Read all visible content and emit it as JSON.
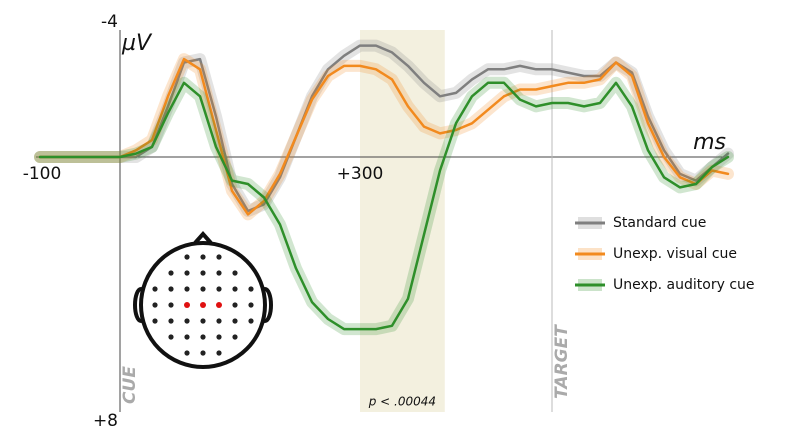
{
  "chart_data": {
    "type": "line",
    "x_label": "ms",
    "y_label": "µV",
    "x": [
      -100,
      -80,
      -60,
      -40,
      -20,
      0,
      20,
      40,
      60,
      80,
      100,
      120,
      140,
      160,
      180,
      200,
      220,
      240,
      260,
      280,
      300,
      320,
      340,
      360,
      380,
      400,
      420,
      440,
      460,
      480,
      500,
      520,
      540,
      560,
      580,
      600,
      620,
      640,
      660,
      680,
      700,
      720,
      740,
      760
    ],
    "series": [
      {
        "name": "Standard cue",
        "color": "#7f7f7f",
        "values": [
          0,
          0,
          0,
          0,
          0,
          0,
          0,
          -0.3,
          -1.5,
          -2.8,
          -2.9,
          -1.2,
          0.8,
          1.6,
          1.4,
          0.6,
          -0.6,
          -1.8,
          -2.6,
          -3.0,
          -3.3,
          -3.3,
          -3.1,
          -2.7,
          -2.2,
          -1.8,
          -1.9,
          -2.3,
          -2.6,
          -2.6,
          -2.7,
          -2.6,
          -2.6,
          -2.5,
          -2.4,
          -2.4,
          -2.8,
          -2.5,
          -1.2,
          -0.2,
          0.5,
          0.7,
          0.3,
          -0.1
        ]
      },
      {
        "name": "Unexp. visual cue",
        "color": "#f28a1e",
        "values": [
          0,
          0,
          0,
          0,
          0,
          0,
          -0.2,
          -0.5,
          -1.8,
          -2.9,
          -2.6,
          -0.8,
          1.0,
          1.7,
          1.3,
          0.5,
          -0.6,
          -1.7,
          -2.4,
          -2.7,
          -2.7,
          -2.6,
          -2.3,
          -1.5,
          -0.9,
          -0.7,
          -0.8,
          -1.0,
          -1.4,
          -1.8,
          -2.0,
          -2.0,
          -2.1,
          -2.2,
          -2.2,
          -2.3,
          -2.8,
          -2.4,
          -1.0,
          0.0,
          0.6,
          0.8,
          0.4,
          0.5
        ]
      },
      {
        "name": "Unexp. auditory cue",
        "color": "#2e8f2a",
        "values": [
          0,
          0,
          0,
          0,
          0,
          0,
          -0.1,
          -0.3,
          -1.3,
          -2.2,
          -1.8,
          -0.3,
          0.7,
          0.8,
          1.2,
          2.0,
          3.3,
          4.3,
          4.8,
          5.1,
          5.1,
          5.1,
          5.0,
          4.2,
          2.3,
          0.4,
          -1.0,
          -1.8,
          -2.2,
          -2.2,
          -1.7,
          -1.5,
          -1.6,
          -1.6,
          -1.5,
          -1.6,
          -2.2,
          -1.5,
          -0.2,
          0.6,
          0.9,
          0.8,
          0.3,
          0.0
        ]
      }
    ],
    "xlim": [
      -105,
      760
    ],
    "xticks": [
      -100,
      {
        "value": 300,
        "label": "+300"
      }
    ],
    "ylim": [
      -4,
      8
    ],
    "yticks": [
      -4,
      {
        "value": 8,
        "label": "+8"
      }
    ],
    "y_inverted": true,
    "legend": "right",
    "markers": [
      {
        "text": "CUE",
        "x": 0
      },
      {
        "text": "TARGET",
        "x": 540
      }
    ],
    "shaded_region": {
      "x": [
        300,
        406
      ],
      "label": "p < .00044"
    }
  }
}
